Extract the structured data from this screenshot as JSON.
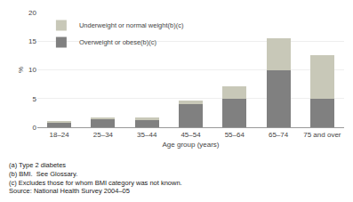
{
  "chart_data": {
    "type": "bar",
    "stacked": true,
    "categories": [
      "18–24",
      "25–34",
      "35–44",
      "45–54",
      "55–64",
      "65–74",
      "75 and over"
    ],
    "series": [
      {
        "name": "Overweight or obese(b)(c)",
        "color": "#808080",
        "values": [
          0.8,
          1.5,
          1.3,
          4.1,
          5.0,
          10.0,
          5.0
        ]
      },
      {
        "name": "Underweight or normal weight(b)(c)",
        "color": "#c8c8b8",
        "values": [
          0.2,
          0.2,
          0.4,
          0.5,
          2.2,
          5.5,
          7.5
        ]
      }
    ],
    "xlabel": "Age group (years)",
    "ylabel": "%",
    "ylim": [
      0,
      20
    ],
    "yticks": [
      0,
      5,
      10,
      15,
      20
    ],
    "grid": true,
    "legend": "upper left",
    "annotations": [
      "(a) Type 2 diabetes",
      "(b) BMI.  See Glossary.",
      "(c) Excludes those for whom BMI category was not known.",
      "Source: National Health Survey 2004–05"
    ]
  }
}
